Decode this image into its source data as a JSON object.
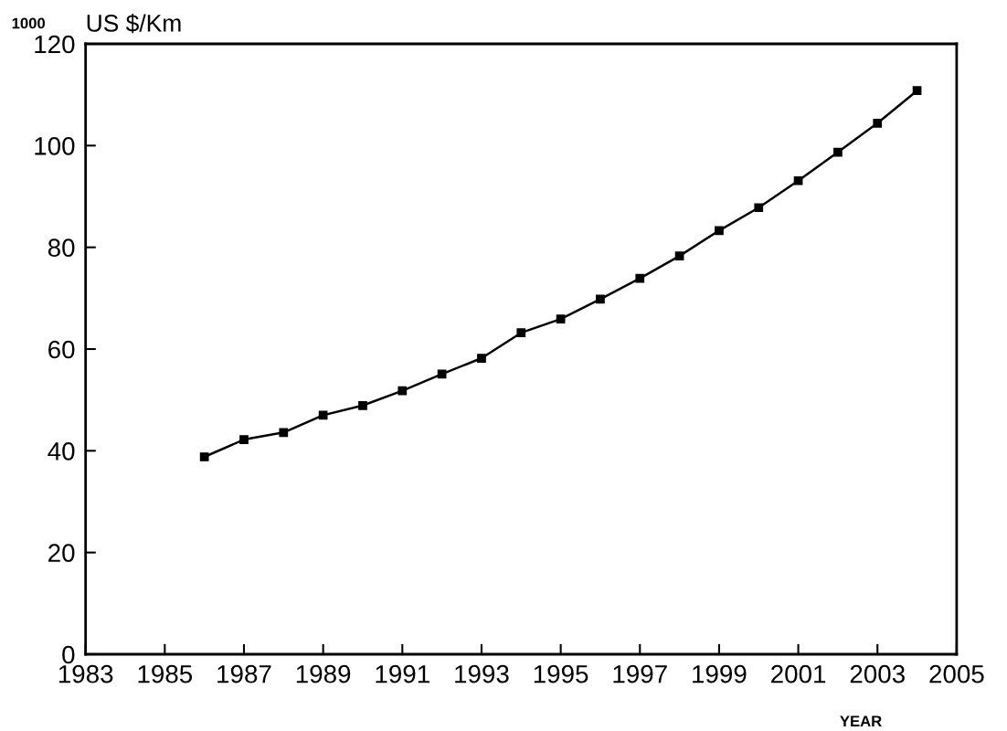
{
  "chart_data": {
    "type": "line",
    "ylabel": "US $/Km",
    "xlabel": "YEAR",
    "annotations": [
      "1000"
    ],
    "x": [
      1986,
      1987,
      1988,
      1989,
      1990,
      1991,
      1992,
      1993,
      1994,
      1995,
      1996,
      1997,
      1998,
      1999,
      2000,
      2001,
      2002,
      2003,
      2004
    ],
    "series": [
      {
        "color": "#000000",
        "values": [
          38.8,
          42.2,
          43.6,
          47.0,
          48.9,
          51.8,
          55.1,
          58.2,
          63.2,
          65.9,
          69.8,
          73.9,
          78.3,
          83.3,
          87.8,
          93.1,
          98.7,
          104.4,
          110.8
        ]
      }
    ],
    "xlim": [
      1983,
      2005
    ],
    "xticks": [
      1983,
      1985,
      1987,
      1989,
      1991,
      1993,
      1995,
      1997,
      1999,
      2001,
      2003,
      2005
    ],
    "ylim": [
      0,
      120
    ],
    "yticks": [
      0,
      20,
      40,
      60,
      80,
      100,
      120
    ],
    "marker": "square",
    "line_style": "solid",
    "grid": false,
    "legend": false
  }
}
